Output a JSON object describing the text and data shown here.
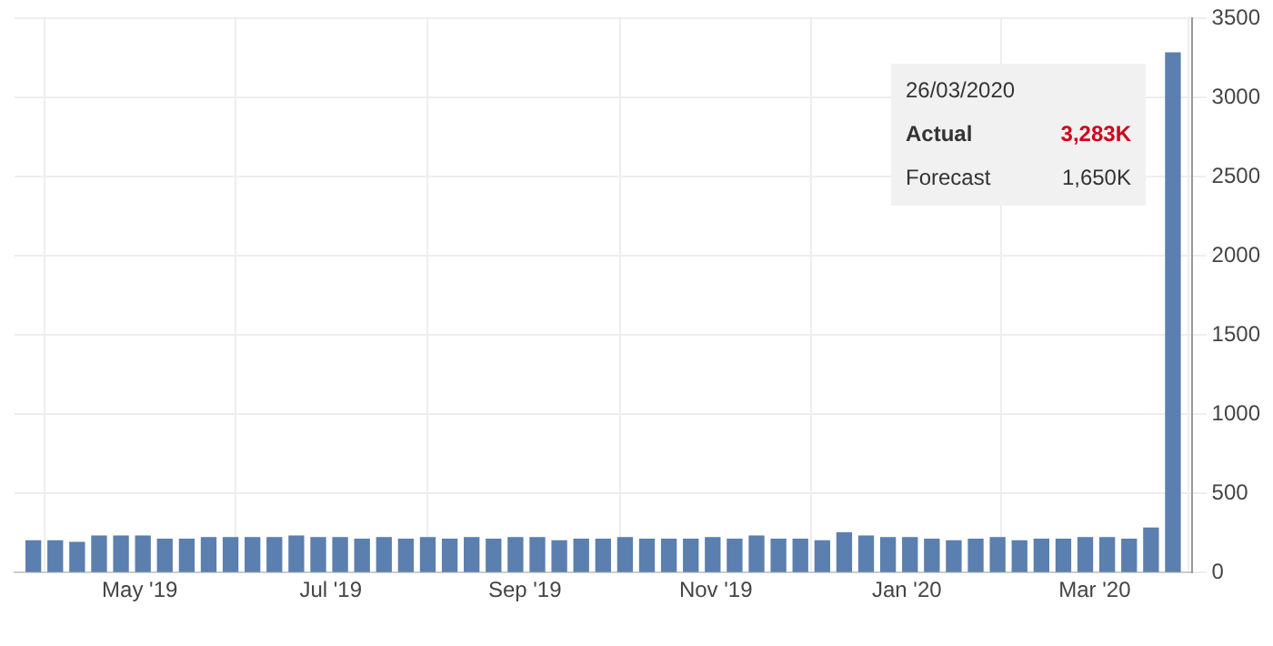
{
  "chart_data": {
    "type": "bar",
    "x": [
      "2019-03-28",
      "2019-04-04",
      "2019-04-11",
      "2019-04-18",
      "2019-04-25",
      "2019-05-02",
      "2019-05-09",
      "2019-05-16",
      "2019-05-23",
      "2019-05-30",
      "2019-06-06",
      "2019-06-13",
      "2019-06-20",
      "2019-06-27",
      "2019-07-04",
      "2019-07-11",
      "2019-07-18",
      "2019-07-25",
      "2019-08-01",
      "2019-08-08",
      "2019-08-15",
      "2019-08-22",
      "2019-08-29",
      "2019-09-05",
      "2019-09-12",
      "2019-09-19",
      "2019-09-26",
      "2019-10-03",
      "2019-10-10",
      "2019-10-17",
      "2019-10-24",
      "2019-10-31",
      "2019-11-07",
      "2019-11-14",
      "2019-11-21",
      "2019-11-28",
      "2019-12-05",
      "2019-12-12",
      "2019-12-19",
      "2019-12-26",
      "2020-01-02",
      "2020-01-09",
      "2020-01-16",
      "2020-01-23",
      "2020-01-30",
      "2020-02-06",
      "2020-02-13",
      "2020-02-20",
      "2020-02-27",
      "2020-03-05",
      "2020-03-12",
      "2020-03-19",
      "2020-03-26"
    ],
    "values": [
      200,
      200,
      190,
      230,
      230,
      230,
      210,
      210,
      220,
      220,
      220,
      220,
      230,
      220,
      220,
      210,
      220,
      210,
      220,
      210,
      220,
      210,
      220,
      220,
      200,
      210,
      210,
      220,
      210,
      210,
      210,
      220,
      210,
      230,
      210,
      210,
      200,
      250,
      230,
      220,
      220,
      210,
      200,
      210,
      220,
      200,
      210,
      210,
      220,
      220,
      210,
      280,
      3283
    ],
    "color": "#5b7fae",
    "xlim": [
      "2019-03-22",
      "2020-04-01"
    ],
    "xticks": [
      {
        "value": "2019-05-01",
        "label": "May '19"
      },
      {
        "value": "2019-07-01",
        "label": "Jul '19"
      },
      {
        "value": "2019-09-01",
        "label": "Sep '19"
      },
      {
        "value": "2019-11-01",
        "label": "Nov '19"
      },
      {
        "value": "2020-01-01",
        "label": "Jan '20"
      },
      {
        "value": "2020-03-01",
        "label": "Mar '20"
      }
    ],
    "ylim": [
      0,
      3500
    ],
    "yticks": [
      0,
      500,
      1000,
      1500,
      2000,
      2500,
      3000,
      3500
    ],
    "grid": true,
    "legend": false,
    "annotations": [
      "26/03/2020",
      "Actual",
      "3,283K",
      "Forecast",
      "1,650K"
    ]
  }
}
